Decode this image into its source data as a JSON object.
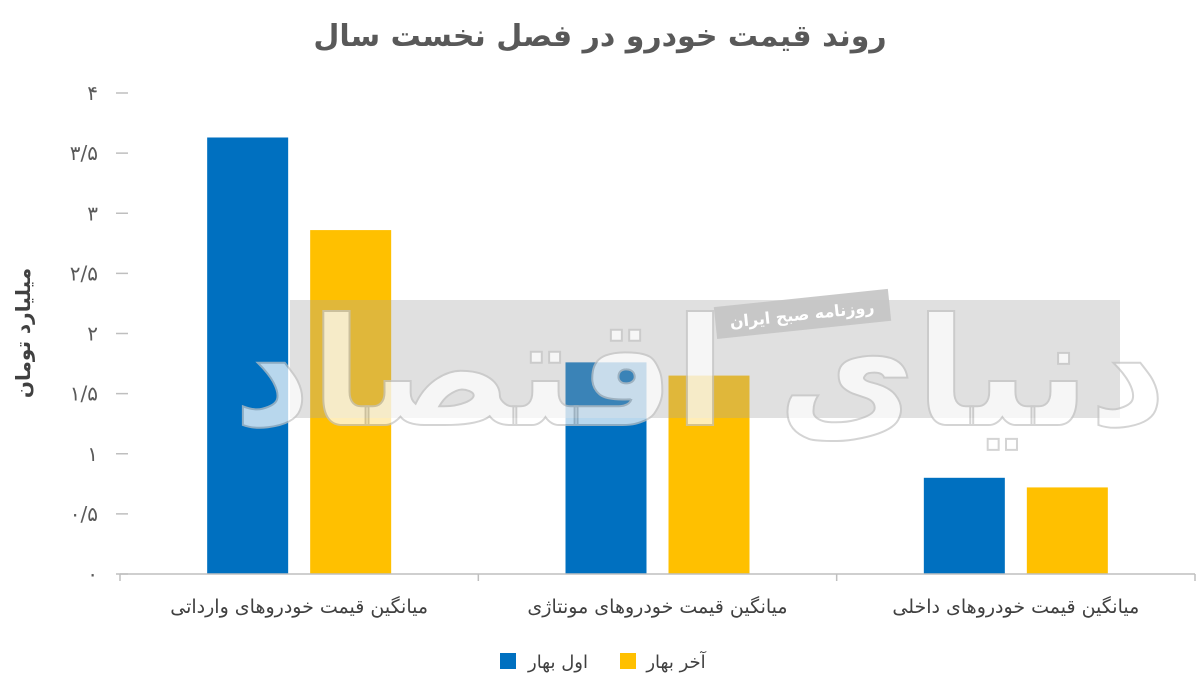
{
  "chart_data": {
    "type": "bar",
    "title": "روند قیمت خودرو در فصل نخست سال",
    "xlabel": "",
    "ylabel": "میلیارد تومان",
    "categories": [
      "میانگین قیمت خودروهای وارداتی",
      "میانگین قیمت خودروهای مونتاژی",
      "میانگین قیمت خودروهای داخلی"
    ],
    "series": [
      {
        "name": "اول بهار",
        "color": "#0070C0",
        "values": [
          3.63,
          1.76,
          0.8
        ]
      },
      {
        "name": "آخر بهار",
        "color": "#FFC000",
        "values": [
          2.86,
          1.65,
          0.72
        ]
      }
    ],
    "ylim": [
      0,
      4
    ],
    "yticks": [
      0,
      0.5,
      1,
      1.5,
      2,
      2.5,
      3,
      3.5,
      4
    ],
    "ytick_labels": [
      "۰",
      "۰/۵",
      "۱",
      "۱/۵",
      "۲",
      "۲/۵",
      "۳",
      "۳/۵",
      "۴"
    ],
    "grid": false,
    "legend": "bottom-center"
  },
  "watermark": {
    "brand": "دنیای اقتصاد",
    "tagline": "روزنامه صبح ایران"
  },
  "colors": {
    "text": "#595959",
    "axis": "#BFBFBF",
    "background": "#FFFFFF"
  }
}
